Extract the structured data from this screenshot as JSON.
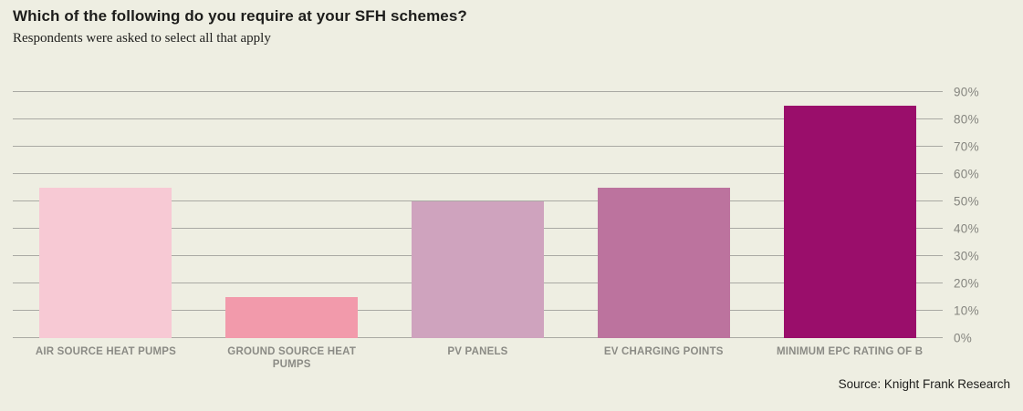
{
  "header": {
    "title": "Which of the following do you require at your SFH schemes?",
    "subtitle": "Respondents were asked to select all that apply"
  },
  "footer": {
    "source": "Source: Knight Frank Research"
  },
  "chart_data": {
    "type": "bar",
    "title": "Which of the following do you require at your SFH schemes?",
    "subtitle": "Respondents were asked to select all that apply",
    "categories": [
      "AIR SOURCE HEAT PUMPS",
      "GROUND SOURCE HEAT PUMPS",
      "PV PANELS",
      "EV CHARGING POINTS",
      "MINIMUM EPC RATING OF B"
    ],
    "values": [
      55,
      15,
      50,
      55,
      85
    ],
    "unit": "%",
    "bar_colors": [
      "#f7c9d4",
      "#f29aab",
      "#cfa3be",
      "#bc739e",
      "#9a0e6b"
    ],
    "xlabel": "",
    "ylabel": "",
    "ylim": [
      0,
      90
    ],
    "ytick_step": 10,
    "ytick_suffix": "%",
    "yaxis_side": "right",
    "grid": "horizontal",
    "legend": "none",
    "colors": {
      "background": "#eeeee2",
      "gridline": "#a9a9a3",
      "axis_label": "#85857f",
      "category_label": "#8b8b85",
      "title_text": "#1d1d1b"
    },
    "source": "Source: Knight Frank Research"
  }
}
